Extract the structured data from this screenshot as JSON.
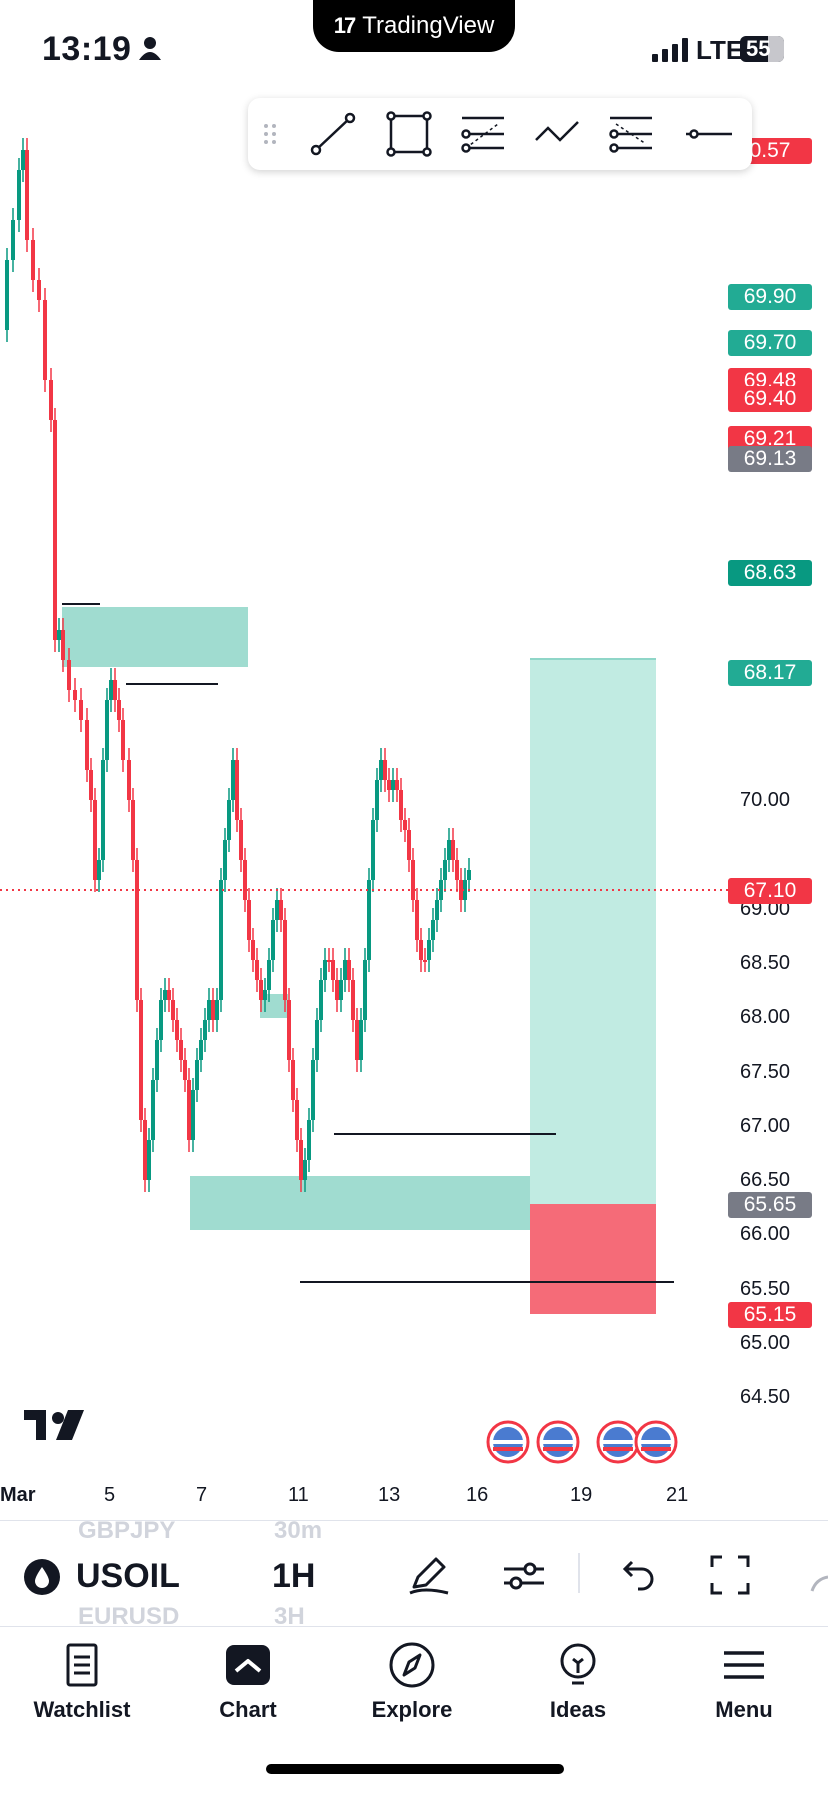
{
  "status_bar": {
    "time": "13:19",
    "network": "LTE",
    "battery": "55",
    "app_badge": "TradingView"
  },
  "draw_toolbar": {
    "tools": [
      "trend-line-icon",
      "rectangle-icon",
      "fib-retracement-icon",
      "path-icon",
      "parallel-channel-icon",
      "horizontal-line-icon"
    ]
  },
  "price_axis": {
    "labels": [
      "70.00",
      "69.00",
      "68.50",
      "68.00",
      "67.50",
      "67.00",
      "66.50",
      "66.00",
      "65.50",
      "65.00",
      "64.50"
    ]
  },
  "price_tags": [
    {
      "value": "0.57",
      "color": "#f23645"
    },
    {
      "value": "69.90",
      "color": "#22ab94"
    },
    {
      "value": "69.70",
      "color": "#22ab94"
    },
    {
      "value": "69.48",
      "color": "#f23645"
    },
    {
      "value": "69.40",
      "color": "#f23645"
    },
    {
      "value": "69.21",
      "color": "#f23645"
    },
    {
      "value": "69.13",
      "color": "#787b86"
    },
    {
      "value": "68.63",
      "color": "#089981"
    },
    {
      "value": "68.17",
      "color": "#22ab94"
    },
    {
      "value": "67.10",
      "color": "#f23645"
    },
    {
      "value": "65.65",
      "color": "#787b86"
    },
    {
      "value": "65.15",
      "color": "#f23645"
    }
  ],
  "current_price": "67.10",
  "date_axis": [
    "Mar",
    "5",
    "7",
    "11",
    "13",
    "16",
    "19",
    "21"
  ],
  "position_tool": {
    "entry": "65.65",
    "target": "68.17",
    "stop": "65.15"
  },
  "symbol_bar": {
    "symbol": "USOIL",
    "interval": "1H",
    "ghost_above": [
      "GBPJPY",
      "30m"
    ],
    "ghost_below": [
      "EURUSD",
      "3H"
    ]
  },
  "bottom_nav": {
    "items": [
      {
        "label": "Watchlist",
        "icon": "watchlist-icon"
      },
      {
        "label": "Chart",
        "icon": "chart-icon"
      },
      {
        "label": "Explore",
        "icon": "compass-icon"
      },
      {
        "label": "Ideas",
        "icon": "lightbulb-icon"
      },
      {
        "label": "Menu",
        "icon": "menu-icon"
      }
    ]
  },
  "colors": {
    "up": "#089981",
    "down": "#f23645",
    "zone": "#8fd6c8",
    "target": "#c1ebe2",
    "stop": "#f56b78"
  }
}
